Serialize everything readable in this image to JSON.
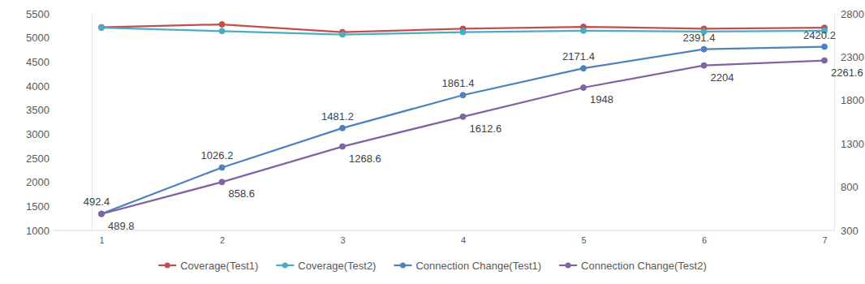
{
  "chart_data": {
    "type": "line",
    "categories": [
      1,
      2,
      3,
      4,
      5,
      6,
      7
    ],
    "ylim": [
      1000,
      5500
    ],
    "yticks": [
      1000,
      1500,
      2000,
      2500,
      3000,
      3500,
      4000,
      4500,
      5000,
      5500
    ],
    "y2lim": [
      300,
      2800
    ],
    "y2ticks": [
      300,
      800,
      1300,
      1800,
      2300,
      2800
    ],
    "grid": false,
    "legend": "bottom",
    "series": [
      {
        "name": "Coverage(Test1)",
        "color": "#c0504d",
        "marker": "circle",
        "values": [
          5220,
          5280,
          5120,
          5190,
          5230,
          5190,
          5210
        ]
      },
      {
        "name": "Coverage(Test2)",
        "color": "#4bacc6",
        "marker": "circle",
        "values": [
          5210,
          5140,
          5070,
          5120,
          5150,
          5130,
          5150
        ]
      },
      {
        "name": "Connection Change(Test1)",
        "color": "#4f81bd",
        "marker": "circle",
        "axis": "y2",
        "data_labels": true,
        "values": [
          492.4,
          1026.2,
          1481.2,
          1861.4,
          2171.4,
          2391.4,
          2420.2
        ]
      },
      {
        "name": "Connection Change(Test2)",
        "color": "#8064a2",
        "marker": "circle",
        "axis": "y2",
        "data_labels": true,
        "values": [
          489.8,
          858.6,
          1268.6,
          1612.6,
          1948,
          2204,
          2261.6
        ]
      }
    ]
  }
}
